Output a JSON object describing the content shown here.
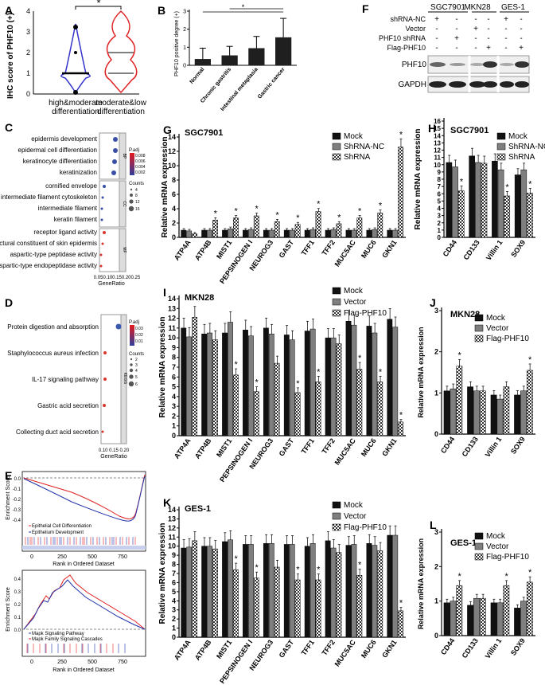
{
  "panels": {
    "A": {
      "letter": "A",
      "ylabel": "IHC score of PHF10 (+)",
      "sig": "*",
      "yticks": [
        "0",
        "1",
        "2",
        "3",
        "4"
      ],
      "groups": [
        "high&moderate\ndifferentiation",
        "moderate&low\ndifferentiation"
      ],
      "colors": [
        "#3333cc",
        "#e02020"
      ]
    },
    "B": {
      "letter": "B",
      "ylabel": "PHF10 positive degree (+)",
      "sig": "*",
      "yticks": [
        "0",
        "1",
        "2",
        "3"
      ]
    },
    "F": {
      "letter": "F",
      "cell_lines": [
        "SGC7901",
        "MKN28",
        "GES-1"
      ],
      "row_labels": [
        "shRNA-NC",
        "Vector",
        "PHF10 shRNA",
        "Flag-PHF10"
      ],
      "signs": [
        [
          "+",
          "-",
          "+",
          "-",
          "+",
          "-"
        ],
        [
          "-",
          "-",
          "-",
          "-",
          "-",
          "-"
        ],
        [
          "-",
          "+",
          "-",
          "-",
          "-",
          "-"
        ],
        [
          "-",
          "-",
          "-",
          "+",
          "-",
          "+"
        ]
      ],
      "signs_row2": [
        "-",
        "-",
        "+",
        "-",
        "+",
        "-"
      ],
      "bands": [
        "PHF10",
        "GAPDH"
      ]
    },
    "C": {
      "letter": "C",
      "terms": [
        "epidermis development",
        "epidermal cell differentiation",
        "keratinocyte differentiation",
        "keratinization",
        "cornified envelope",
        "intermediate filament cytoskeleton",
        "intermediate filament",
        "keratin filament",
        "receptor ligand activity",
        "structural constituent of skin epidermis",
        "aspartic-type peptidase activity",
        "aspartic-type endopeptidase activity"
      ],
      "groups": [
        "BP",
        "CC",
        "MF"
      ],
      "padj_title": "P.adj",
      "padj_ticks": [
        "0.008",
        "0.006",
        "0.004",
        "0.002"
      ],
      "counts_title": "Counts",
      "counts": [
        "4",
        "8",
        "12",
        "16"
      ],
      "xticks": "0.050.100.150.200.25",
      "xlabel": "GeneRatio"
    },
    "D": {
      "letter": "D",
      "terms": [
        "Protein digestion and absorption",
        "Staphylococcus aureus infection",
        "IL-17 signaling pathway",
        "Gastric acid secretion",
        "Collecting duct acid secretion"
      ],
      "group": "KEGG",
      "padj_title": "P.adj",
      "padj_ticks": [
        "0.03",
        "0.02",
        "0.01"
      ],
      "counts_title": "Counts",
      "counts": [
        "2",
        "3",
        "4",
        "5",
        "6"
      ],
      "xticks": "0.10 0.15 0.20",
      "xlabel": "GeneRatio"
    },
    "E": {
      "letter": "E",
      "ylabel": "Enrichment Score",
      "xlabel": "Rank in Ordered Dataset",
      "top_legend": [
        "Epithelial Cell Differentiation",
        "Epithelium Development"
      ],
      "bottom_legend": [
        "Mapk Signaling Pathway",
        "Mapk Family Signaling Cascades"
      ],
      "top_yticks": [
        "0.0",
        "-0.1",
        "-0.2",
        "-0.3",
        "-0.4"
      ],
      "bottom_yticks": [
        "0.4",
        "0.3",
        "0.2",
        "0.1",
        "0.0"
      ],
      "xticks": [
        "0",
        "250",
        "500",
        "750"
      ]
    }
  },
  "chart_data": [
    {
      "id": "G",
      "letter": "G",
      "type": "bar",
      "title": "SGC7901",
      "ylabel": "Relative mRNA expression",
      "ylim": [
        0,
        14
      ],
      "categories": [
        "ATP4A",
        "ATP4B",
        "MIST1",
        "PEPSINOGEN I",
        "NEUROG3",
        "GAST",
        "TFF1",
        "TFF2",
        "MUC5AC",
        "MUC6",
        "GKN1"
      ],
      "series": [
        {
          "name": "Mock",
          "values": [
            1,
            1,
            1,
            1,
            1,
            1,
            1,
            1,
            1,
            1,
            1
          ]
        },
        {
          "name": "ShRNA-NC",
          "values": [
            0.9,
            1.0,
            1.2,
            1.1,
            1.0,
            1.0,
            1.1,
            1.1,
            1.0,
            1.1,
            1.0
          ]
        },
        {
          "name": "ShRNA",
          "values": [
            0.5,
            2.4,
            2.7,
            3.0,
            2.2,
            1.8,
            3.6,
            1.9,
            2.7,
            3.4,
            12.6
          ]
        }
      ],
      "stars": [
        false,
        true,
        true,
        true,
        true,
        true,
        true,
        true,
        true,
        true,
        true
      ]
    },
    {
      "id": "H",
      "letter": "H",
      "type": "bar",
      "title": "SGC7901",
      "ylabel": "Relative mRNA expression",
      "ylim": [
        0,
        16
      ],
      "categories": [
        "CD44",
        "CD133",
        "Villin 1",
        "SOX9"
      ],
      "series": [
        {
          "name": "Mock",
          "values": [
            10.3,
            11.2,
            10.5,
            8.6
          ]
        },
        {
          "name": "ShRNA-NC",
          "values": [
            9.7,
            10.3,
            9.3,
            9.3
          ]
        },
        {
          "name": "ShRNA",
          "values": [
            6.4,
            10.2,
            5.7,
            6.1
          ]
        }
      ],
      "stars": [
        true,
        false,
        true,
        true
      ]
    },
    {
      "id": "I",
      "letter": "I",
      "type": "bar",
      "title": "MKN28",
      "ylabel": "Relative mRNA expression",
      "ylim": [
        0,
        14
      ],
      "categories": [
        "ATP4A",
        "ATP4B",
        "MIST1",
        "PEPSINOGEN I",
        "NEUROG3",
        "GAST",
        "TFF1",
        "TFF2",
        "MUC5AC",
        "MUC6",
        "GKN1"
      ],
      "series": [
        {
          "name": "Mock",
          "values": [
            11.0,
            10.4,
            10.5,
            10.8,
            11.0,
            10.3,
            10.7,
            10.0,
            11.7,
            11.2,
            11.9
          ]
        },
        {
          "name": "Vector",
          "values": [
            10.1,
            10.5,
            11.6,
            10.2,
            10.4,
            9.8,
            10.9,
            10.0,
            11.3,
            10.5,
            11.1
          ]
        },
        {
          "name": "Flag-PHF10",
          "values": [
            12.1,
            9.8,
            6.2,
            4.5,
            7.4,
            4.4,
            5.5,
            9.4,
            6.8,
            5.5,
            1.4
          ]
        }
      ],
      "stars": [
        false,
        false,
        true,
        true,
        false,
        true,
        true,
        false,
        true,
        true,
        true
      ]
    },
    {
      "id": "J",
      "letter": "J",
      "type": "bar",
      "title": "MKN28",
      "ylabel": "Relative mRNA expression",
      "ylim": [
        0,
        3
      ],
      "categories": [
        "CD44",
        "CD133",
        "Villin 1",
        "SOX9"
      ],
      "series": [
        {
          "name": "Mock",
          "values": [
            1.05,
            1.15,
            0.95,
            0.95
          ]
        },
        {
          "name": "Vector",
          "values": [
            1.1,
            1.05,
            0.85,
            1.05
          ]
        },
        {
          "name": "Flag-PHF10",
          "values": [
            1.65,
            1.05,
            1.15,
            1.55
          ]
        }
      ],
      "stars": [
        true,
        false,
        false,
        true
      ]
    },
    {
      "id": "K",
      "letter": "K",
      "type": "bar",
      "title": "GES-1",
      "ylabel": "Relative mRNA expression",
      "ylim": [
        0,
        14
      ],
      "categories": [
        "ATP4A",
        "ATP4B",
        "MIST1",
        "PEPSINOGEN I",
        "NEUROG3",
        "GAST",
        "TFF1",
        "TFF2",
        "MUC5AC",
        "MUC6",
        "GKN1"
      ],
      "series": [
        {
          "name": "Mock",
          "values": [
            9.8,
            10.0,
            10.5,
            10.2,
            10.3,
            10.2,
            10.0,
            10.6,
            10.1,
            10.3,
            11.2
          ]
        },
        {
          "name": "Vector",
          "values": [
            9.9,
            10.0,
            10.7,
            10.2,
            10.3,
            10.2,
            10.3,
            9.8,
            10.2,
            10.1,
            11.2
          ]
        },
        {
          "name": "Flag-PHF10",
          "values": [
            10.6,
            9.7,
            7.4,
            6.5,
            7.7,
            6.3,
            6.3,
            9.3,
            6.8,
            9.5,
            2.9
          ]
        }
      ],
      "stars": [
        false,
        false,
        true,
        true,
        false,
        true,
        true,
        false,
        true,
        false,
        true
      ]
    },
    {
      "id": "L",
      "letter": "L",
      "type": "bar",
      "title": "GES-1",
      "ylabel": "Relative mRNA expression",
      "ylim": [
        0,
        3
      ],
      "categories": [
        "CD44",
        "CD133",
        "Villin 1",
        "SOX9"
      ],
      "series": [
        {
          "name": "Mock",
          "values": [
            0.95,
            0.88,
            0.95,
            0.8
          ]
        },
        {
          "name": "Vector",
          "values": [
            1.0,
            1.08,
            0.95,
            1.0
          ]
        },
        {
          "name": "Flag-PHF10",
          "values": [
            1.45,
            1.08,
            1.45,
            1.55
          ]
        }
      ],
      "stars": [
        true,
        false,
        true,
        true
      ]
    },
    {
      "id": "Bbar",
      "type": "bar",
      "title": "",
      "ylabel": "PHF10 positive degree (+)",
      "ylim": [
        0,
        3
      ],
      "categories": [
        "Normal",
        "Chronic gastritis",
        "Intestinal metaplasia",
        "Gastric cancer"
      ],
      "values": [
        0.35,
        0.55,
        0.95,
        1.55
      ],
      "errors": [
        0.6,
        0.5,
        0.65,
        1.05
      ]
    }
  ]
}
